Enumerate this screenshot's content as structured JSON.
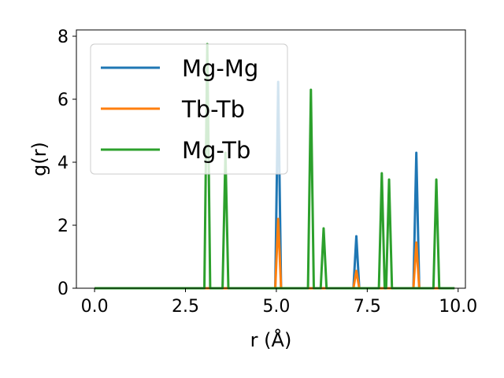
{
  "chart_data": {
    "type": "line",
    "xlabel": "r (Å)",
    "ylabel": "g(r)",
    "xlim": [
      -0.5,
      10.2
    ],
    "ylim": [
      0,
      8.2
    ],
    "xticks": [
      0.0,
      2.5,
      5.0,
      7.5,
      10.0
    ],
    "xtick_labels": [
      "0.0",
      "2.5",
      "5.0",
      "7.5",
      "10.0"
    ],
    "yticks": [
      0,
      2,
      4,
      6,
      8
    ],
    "ytick_labels": [
      "0",
      "2",
      "4",
      "6",
      "8"
    ],
    "grid": false,
    "legend_position": "upper-left",
    "peak_halfwidth": 0.08,
    "x_end": 9.9,
    "series": [
      {
        "name": "Mg-Mg",
        "color": "#1f77b4",
        "peaks": [
          {
            "x": 5.05,
            "y": 6.55
          },
          {
            "x": 7.2,
            "y": 1.65
          },
          {
            "x": 8.85,
            "y": 4.3
          }
        ]
      },
      {
        "name": "Tb-Tb",
        "color": "#ff7f0e",
        "peaks": [
          {
            "x": 5.05,
            "y": 2.2
          },
          {
            "x": 7.2,
            "y": 0.55
          },
          {
            "x": 8.85,
            "y": 1.45
          }
        ]
      },
      {
        "name": "Mg-Tb",
        "color": "#2ca02c",
        "peaks": [
          {
            "x": 3.1,
            "y": 7.75
          },
          {
            "x": 3.6,
            "y": 4.3
          },
          {
            "x": 5.95,
            "y": 6.3
          },
          {
            "x": 6.3,
            "y": 1.9
          },
          {
            "x": 7.9,
            "y": 3.65
          },
          {
            "x": 8.1,
            "y": 3.45
          },
          {
            "x": 9.4,
            "y": 3.45
          }
        ]
      }
    ]
  }
}
